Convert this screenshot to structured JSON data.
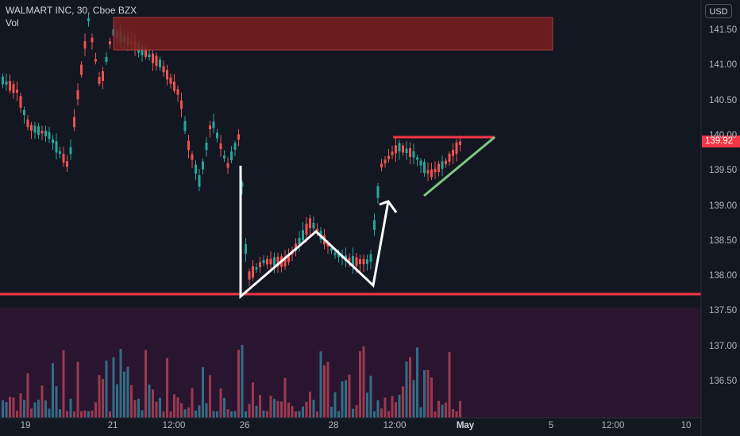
{
  "header": {
    "symbol_line": "WALMART INC, 30, Cboe BZX",
    "volume_label": "Vol"
  },
  "currency_button": "USD",
  "last_price": "139.92",
  "y_axis": {
    "ticks": [
      {
        "label": "141.50",
        "value": 141.5
      },
      {
        "label": "141.00",
        "value": 141.0
      },
      {
        "label": "140.50",
        "value": 140.5
      },
      {
        "label": "140.00",
        "value": 140.0
      },
      {
        "label": "139.50",
        "value": 139.5
      },
      {
        "label": "139.00",
        "value": 139.0
      },
      {
        "label": "138.50",
        "value": 138.5
      },
      {
        "label": "138.00",
        "value": 138.0
      },
      {
        "label": "137.50",
        "value": 137.5
      },
      {
        "label": "137.00",
        "value": 137.0
      },
      {
        "label": "136.50",
        "value": 136.5
      }
    ]
  },
  "x_axis": {
    "ticks": [
      "19",
      "21",
      "12:00",
      "26",
      "28",
      "12:00",
      "May",
      "5",
      "12:00",
      "10"
    ]
  },
  "colors": {
    "background": "#131722",
    "up": "#26a69a",
    "down": "#ef5350",
    "resistance": "#f23645",
    "trendline": "#81c784",
    "zone_fill": "#7a2020",
    "volume_pane": "#2a1530",
    "pattern": "#ffffff"
  },
  "chart_data": {
    "type": "candlestick",
    "title": "WALMART INC, 30, Cboe BZX",
    "ylim": [
      135.95,
      141.85
    ],
    "price_levels": {
      "support_line": 137.73,
      "resistance_line": 139.98,
      "supply_zone": [
        141.22,
        141.68
      ]
    },
    "last_close": 139.92,
    "sessions": [
      "19",
      "21",
      "26",
      "28",
      "May"
    ]
  }
}
